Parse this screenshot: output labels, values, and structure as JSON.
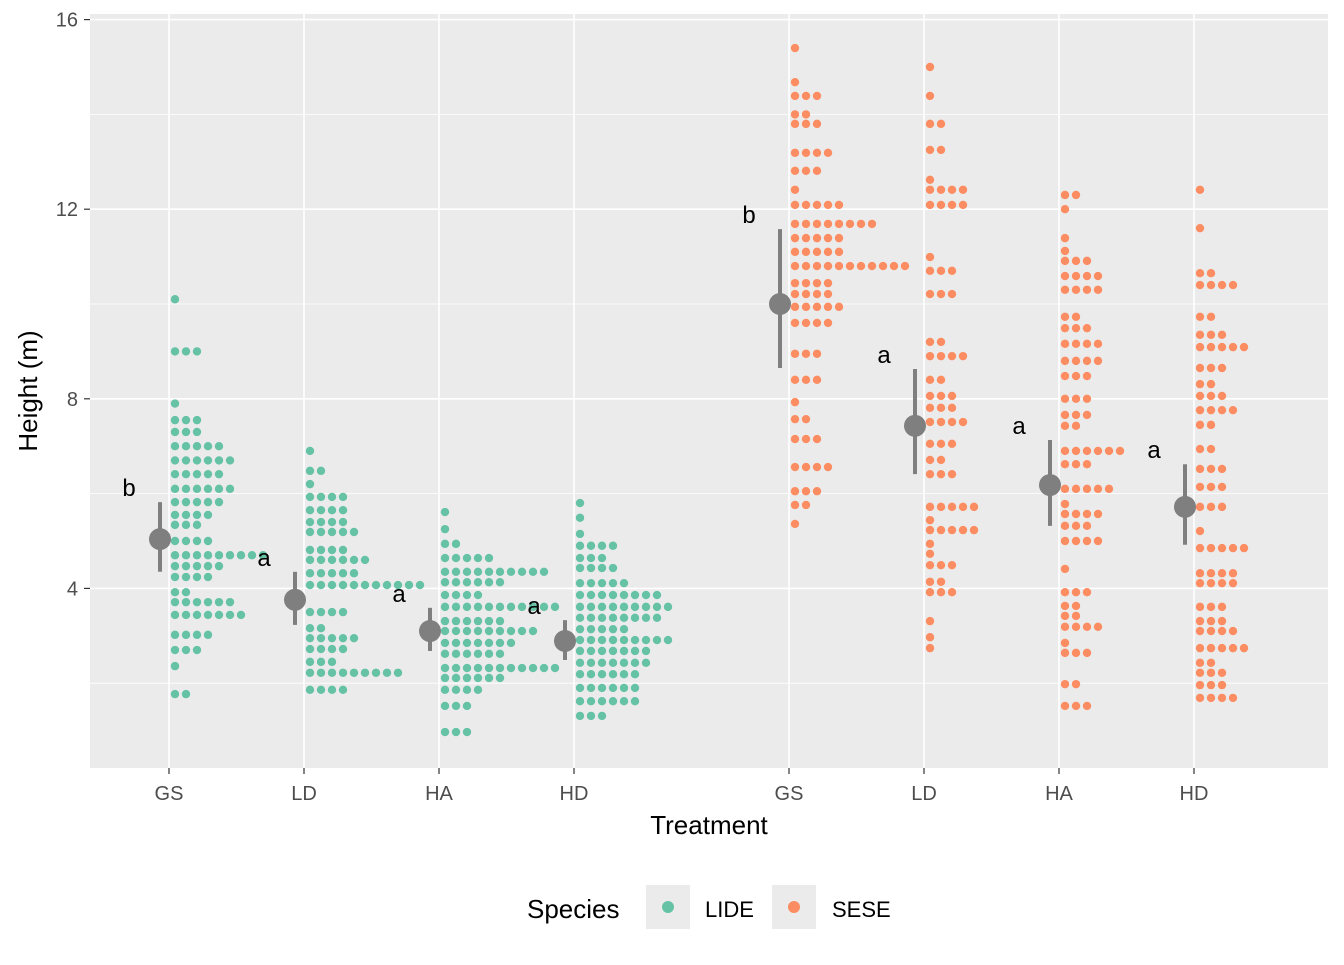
{
  "chart_data": {
    "type": "dotplot",
    "title": "",
    "xlabel": "Treatment",
    "ylabel": "Height (m)",
    "ylim": [
      0.2,
      16.1
    ],
    "yticks": [
      4,
      8,
      12,
      16
    ],
    "grid": true,
    "legend": {
      "title": "Species",
      "placement": "bottom",
      "entries": [
        {
          "label": "LIDE",
          "color": "#66C2A5"
        },
        {
          "label": "SESE",
          "color": "#FC8D62"
        }
      ]
    },
    "summary_color": "#7F7F7F",
    "groups": [
      {
        "species": "LIDE",
        "treatment": "GS",
        "mean": 5.04,
        "lo": 4.35,
        "hi": 5.82,
        "letter": "b",
        "bins": [
          [
            10.1,
            1
          ],
          [
            9.0,
            3
          ],
          [
            7.9,
            1
          ],
          [
            7.55,
            3
          ],
          [
            7.3,
            3
          ],
          [
            7.0,
            5
          ],
          [
            6.7,
            6
          ],
          [
            6.41,
            5
          ],
          [
            6.1,
            6
          ],
          [
            5.82,
            5
          ],
          [
            5.55,
            4
          ],
          [
            5.34,
            3
          ],
          [
            5.0,
            4
          ],
          [
            4.7,
            9
          ],
          [
            4.47,
            5
          ],
          [
            4.24,
            4
          ],
          [
            3.92,
            2
          ],
          [
            3.71,
            6
          ],
          [
            3.44,
            7
          ],
          [
            3.02,
            4
          ],
          [
            2.7,
            3
          ],
          [
            2.36,
            1
          ],
          [
            1.77,
            2
          ]
        ]
      },
      {
        "species": "LIDE",
        "treatment": "LD",
        "mean": 3.76,
        "lo": 3.23,
        "hi": 4.35,
        "letter": "a",
        "bins": [
          [
            6.9,
            1
          ],
          [
            6.48,
            2
          ],
          [
            6.2,
            1
          ],
          [
            5.93,
            4
          ],
          [
            5.65,
            4
          ],
          [
            5.4,
            4
          ],
          [
            5.19,
            5
          ],
          [
            4.81,
            4
          ],
          [
            4.6,
            6
          ],
          [
            4.32,
            5
          ],
          [
            4.07,
            11
          ],
          [
            3.5,
            4
          ],
          [
            3.16,
            2
          ],
          [
            2.95,
            5
          ],
          [
            2.72,
            4
          ],
          [
            2.45,
            3
          ],
          [
            2.22,
            9
          ],
          [
            1.86,
            4
          ]
        ]
      },
      {
        "species": "LIDE",
        "treatment": "HA",
        "mean": 3.1,
        "lo": 2.68,
        "hi": 3.59,
        "letter": "a",
        "bins": [
          [
            5.61,
            1
          ],
          [
            5.25,
            1
          ],
          [
            4.94,
            2
          ],
          [
            4.64,
            5
          ],
          [
            4.35,
            10
          ],
          [
            4.13,
            6
          ],
          [
            3.86,
            4
          ],
          [
            3.61,
            11
          ],
          [
            3.31,
            6
          ],
          [
            3.1,
            9
          ],
          [
            2.85,
            7
          ],
          [
            2.62,
            6
          ],
          [
            2.32,
            11
          ],
          [
            2.11,
            6
          ],
          [
            1.86,
            4
          ],
          [
            1.52,
            3
          ],
          [
            0.97,
            3
          ]
        ]
      },
      {
        "species": "LIDE",
        "treatment": "HD",
        "mean": 2.89,
        "lo": 2.49,
        "hi": 3.33,
        "letter": "a",
        "bins": [
          [
            5.8,
            1
          ],
          [
            5.49,
            1
          ],
          [
            5.15,
            1
          ],
          [
            4.9,
            4
          ],
          [
            4.64,
            3
          ],
          [
            4.43,
            4
          ],
          [
            4.11,
            5
          ],
          [
            3.86,
            8
          ],
          [
            3.61,
            9
          ],
          [
            3.38,
            8
          ],
          [
            3.14,
            5
          ],
          [
            2.91,
            9
          ],
          [
            2.68,
            7
          ],
          [
            2.43,
            7
          ],
          [
            2.19,
            6
          ],
          [
            1.9,
            6
          ],
          [
            1.62,
            6
          ],
          [
            1.31,
            3
          ]
        ]
      },
      {
        "species": "SESE",
        "treatment": "GS",
        "mean": 10.0,
        "lo": 8.65,
        "hi": 11.58,
        "letter": "b",
        "bins": [
          [
            15.4,
            1
          ],
          [
            14.68,
            1
          ],
          [
            14.39,
            3
          ],
          [
            14.0,
            2
          ],
          [
            13.8,
            3
          ],
          [
            13.19,
            4
          ],
          [
            12.81,
            3
          ],
          [
            12.41,
            1
          ],
          [
            12.09,
            5
          ],
          [
            11.69,
            8
          ],
          [
            11.39,
            5
          ],
          [
            11.1,
            5
          ],
          [
            10.8,
            11
          ],
          [
            10.44,
            4
          ],
          [
            10.21,
            4
          ],
          [
            9.94,
            5
          ],
          [
            9.6,
            4
          ],
          [
            8.95,
            3
          ],
          [
            8.4,
            3
          ],
          [
            7.93,
            1
          ],
          [
            7.57,
            2
          ],
          [
            7.15,
            3
          ],
          [
            6.56,
            4
          ],
          [
            6.05,
            3
          ],
          [
            5.76,
            2
          ],
          [
            5.36,
            1
          ]
        ]
      },
      {
        "species": "SESE",
        "treatment": "LD",
        "mean": 7.43,
        "lo": 6.41,
        "hi": 8.63,
        "letter": "a",
        "bins": [
          [
            15.0,
            1
          ],
          [
            14.39,
            1
          ],
          [
            13.8,
            2
          ],
          [
            13.25,
            2
          ],
          [
            12.62,
            1
          ],
          [
            12.41,
            4
          ],
          [
            12.09,
            4
          ],
          [
            10.99,
            1
          ],
          [
            10.7,
            3
          ],
          [
            10.21,
            3
          ],
          [
            9.2,
            2
          ],
          [
            8.9,
            4
          ],
          [
            8.4,
            2
          ],
          [
            8.06,
            3
          ],
          [
            7.81,
            3
          ],
          [
            7.51,
            4
          ],
          [
            7.05,
            3
          ],
          [
            6.71,
            2
          ],
          [
            6.41,
            3
          ],
          [
            5.72,
            5
          ],
          [
            5.44,
            1
          ],
          [
            5.23,
            5
          ],
          [
            4.94,
            1
          ],
          [
            4.73,
            1
          ],
          [
            4.49,
            3
          ],
          [
            4.14,
            2
          ],
          [
            3.92,
            3
          ],
          [
            3.31,
            1
          ],
          [
            2.97,
            1
          ],
          [
            2.74,
            1
          ]
        ]
      },
      {
        "species": "SESE",
        "treatment": "HA",
        "mean": 6.18,
        "lo": 5.32,
        "hi": 7.13,
        "letter": "a",
        "bins": [
          [
            12.3,
            2
          ],
          [
            12.0,
            1
          ],
          [
            11.39,
            1
          ],
          [
            11.12,
            1
          ],
          [
            10.91,
            3
          ],
          [
            10.59,
            4
          ],
          [
            10.3,
            4
          ],
          [
            9.73,
            2
          ],
          [
            9.49,
            3
          ],
          [
            9.16,
            4
          ],
          [
            8.8,
            4
          ],
          [
            8.48,
            3
          ],
          [
            8.0,
            3
          ],
          [
            7.66,
            3
          ],
          [
            7.43,
            2
          ],
          [
            6.9,
            6
          ],
          [
            6.62,
            3
          ],
          [
            6.1,
            5
          ],
          [
            5.78,
            1
          ],
          [
            5.57,
            4
          ],
          [
            5.32,
            3
          ],
          [
            5.0,
            4
          ],
          [
            4.41,
            1
          ],
          [
            3.92,
            3
          ],
          [
            3.63,
            2
          ],
          [
            3.42,
            2
          ],
          [
            3.19,
            4
          ],
          [
            2.85,
            1
          ],
          [
            2.64,
            3
          ],
          [
            1.98,
            2
          ],
          [
            1.52,
            3
          ]
        ]
      },
      {
        "species": "SESE",
        "treatment": "HD",
        "mean": 5.72,
        "lo": 4.92,
        "hi": 6.62,
        "letter": "a",
        "bins": [
          [
            12.41,
            1
          ],
          [
            11.6,
            1
          ],
          [
            10.65,
            2
          ],
          [
            10.4,
            4
          ],
          [
            9.73,
            2
          ],
          [
            9.35,
            3
          ],
          [
            9.09,
            5
          ],
          [
            8.65,
            3
          ],
          [
            8.31,
            2
          ],
          [
            8.06,
            3
          ],
          [
            7.76,
            4
          ],
          [
            7.45,
            2
          ],
          [
            6.94,
            2
          ],
          [
            6.52,
            3
          ],
          [
            6.14,
            3
          ],
          [
            5.72,
            3
          ],
          [
            5.21,
            1
          ],
          [
            4.85,
            5
          ],
          [
            4.32,
            4
          ],
          [
            4.11,
            4
          ],
          [
            3.61,
            3
          ],
          [
            3.31,
            3
          ],
          [
            3.1,
            4
          ],
          [
            2.74,
            5
          ],
          [
            2.43,
            2
          ],
          [
            2.22,
            3
          ],
          [
            1.96,
            3
          ],
          [
            1.69,
            4
          ]
        ]
      }
    ]
  }
}
